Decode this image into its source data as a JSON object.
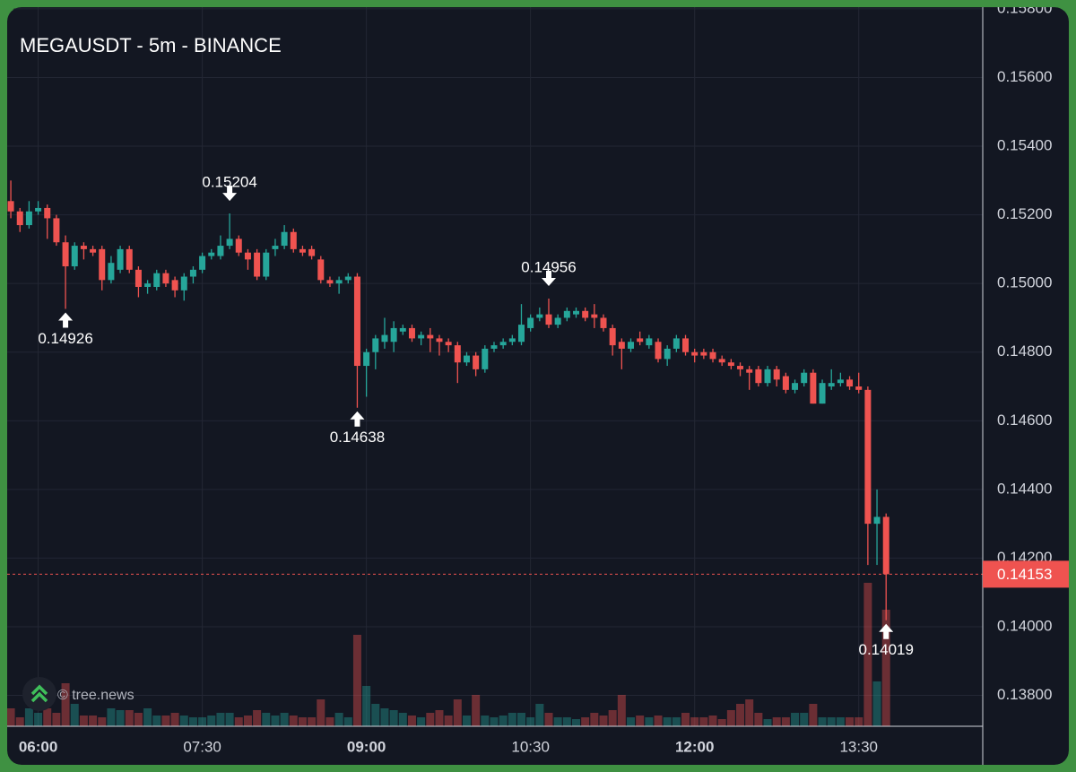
{
  "chart_data": {
    "type": "candlestick",
    "title": "MEGAUSDT - 5m - BINANCE",
    "watermark": "© tree.news",
    "up_color": "#26a69a",
    "down_color": "#ef5350",
    "grid": true,
    "x": [
      "05:45",
      "05:50",
      "05:55",
      "06:00",
      "06:05",
      "06:10",
      "06:15",
      "06:20",
      "06:25",
      "06:30",
      "06:35",
      "06:40",
      "06:45",
      "06:50",
      "06:55",
      "07:00",
      "07:05",
      "07:10",
      "07:15",
      "07:20",
      "07:25",
      "07:30",
      "07:35",
      "07:40",
      "07:45",
      "07:50",
      "07:55",
      "08:00",
      "08:05",
      "08:10",
      "08:15",
      "08:20",
      "08:25",
      "08:30",
      "08:35",
      "08:40",
      "08:45",
      "08:50",
      "08:55",
      "09:00",
      "09:05",
      "09:10",
      "09:15",
      "09:20",
      "09:25",
      "09:30",
      "09:35",
      "09:40",
      "09:45",
      "09:50",
      "09:55",
      "10:00",
      "10:05",
      "10:10",
      "10:15",
      "10:20",
      "10:25",
      "10:30",
      "10:35",
      "10:40",
      "10:45",
      "10:50",
      "10:55",
      "11:00",
      "11:05",
      "11:10",
      "11:15",
      "11:20",
      "11:25",
      "11:30",
      "11:35",
      "11:40",
      "11:45",
      "11:50",
      "11:55",
      "12:00",
      "12:05",
      "12:10",
      "12:15",
      "12:20",
      "12:25",
      "12:30",
      "12:35",
      "12:40",
      "12:45",
      "12:50",
      "12:55",
      "13:00",
      "13:05",
      "13:10",
      "13:15",
      "13:20",
      "13:25",
      "13:30",
      "13:35",
      "13:40",
      "13:45"
    ],
    "open": [
      0.1524,
      0.1521,
      0.1517,
      0.1521,
      0.1522,
      0.1519,
      0.1512,
      0.1505,
      0.1511,
      0.151,
      0.151,
      0.1501,
      0.1504,
      0.151,
      0.1504,
      0.1499,
      0.1499,
      0.1503,
      0.1501,
      0.1498,
      0.1502,
      0.1504,
      0.1508,
      0.1508,
      0.1511,
      0.1513,
      0.1509,
      0.1509,
      0.1502,
      0.151,
      0.1511,
      0.1515,
      0.151,
      0.151,
      0.1507,
      0.1501,
      0.15,
      0.1501,
      0.1502,
      0.1476,
      0.148,
      0.1483,
      0.1483,
      0.1486,
      0.1487,
      0.1484,
      0.1485,
      0.1484,
      0.1483,
      0.1482,
      0.1477,
      0.1479,
      0.1475,
      0.1481,
      0.1482,
      0.1483,
      0.1483,
      0.1487,
      0.149,
      0.1491,
      0.1488,
      0.149,
      0.1491,
      0.1492,
      0.1491,
      0.149,
      0.1487,
      0.1483,
      0.1481,
      0.1484,
      0.1482,
      0.1483,
      0.1478,
      0.1481,
      0.1484,
      0.148,
      0.148,
      0.148,
      0.1478,
      0.1477,
      0.1476,
      0.1475,
      0.1475,
      0.1471,
      0.1475,
      0.1473,
      0.1469,
      0.1471,
      0.1474,
      0.1465,
      0.147,
      0.1471,
      0.1472,
      0.147,
      0.1469,
      0.143,
      0.1432
    ],
    "high": [
      0.153,
      0.1522,
      0.1524,
      0.1524,
      0.1523,
      0.152,
      0.1514,
      0.1512,
      0.1512,
      0.1511,
      0.1511,
      0.1508,
      0.1511,
      0.1511,
      0.1505,
      0.1501,
      0.1504,
      0.1504,
      0.1502,
      0.1503,
      0.1505,
      0.1509,
      0.151,
      0.1514,
      0.15204,
      0.1514,
      0.151,
      0.151,
      0.151,
      0.1513,
      0.1517,
      0.1516,
      0.1511,
      0.1511,
      0.1508,
      0.1502,
      0.1502,
      0.1503,
      0.1503,
      0.1481,
      0.1485,
      0.149,
      0.1489,
      0.1488,
      0.1488,
      0.1486,
      0.1487,
      0.1485,
      0.1484,
      0.1483,
      0.148,
      0.148,
      0.1482,
      0.1483,
      0.1484,
      0.1485,
      0.1494,
      0.1491,
      0.1493,
      0.14956,
      0.1491,
      0.1493,
      0.1493,
      0.1493,
      0.1494,
      0.1491,
      0.1488,
      0.1484,
      0.1484,
      0.1486,
      0.1485,
      0.1484,
      0.1482,
      0.1485,
      0.1485,
      0.1481,
      0.1481,
      0.1481,
      0.1479,
      0.1478,
      0.1477,
      0.1476,
      0.1476,
      0.1476,
      0.1476,
      0.1474,
      0.1472,
      0.1475,
      0.1475,
      0.1472,
      0.1475,
      0.1474,
      0.1473,
      0.1474,
      0.147,
      0.144,
      0.1433
    ],
    "low": [
      0.1519,
      0.1515,
      0.1516,
      0.152,
      0.1513,
      0.1511,
      0.14926,
      0.1504,
      0.1507,
      0.1508,
      0.1498,
      0.15,
      0.1503,
      0.1503,
      0.1496,
      0.1497,
      0.1498,
      0.1499,
      0.1496,
      0.1495,
      0.15,
      0.1503,
      0.1507,
      0.1507,
      0.151,
      0.1508,
      0.1504,
      0.1501,
      0.1501,
      0.1508,
      0.151,
      0.1509,
      0.1508,
      0.1507,
      0.15,
      0.1499,
      0.1497,
      0.15,
      0.14638,
      0.1467,
      0.1475,
      0.1481,
      0.148,
      0.1485,
      0.1483,
      0.1482,
      0.148,
      0.1479,
      0.148,
      0.1471,
      0.1476,
      0.1473,
      0.1474,
      0.148,
      0.1481,
      0.1482,
      0.1482,
      0.1486,
      0.1489,
      0.1487,
      0.1487,
      0.1489,
      0.149,
      0.1489,
      0.1487,
      0.1486,
      0.1479,
      0.1475,
      0.148,
      0.1482,
      0.1481,
      0.1477,
      0.1476,
      0.148,
      0.1479,
      0.1477,
      0.1478,
      0.1477,
      0.1476,
      0.1475,
      0.1473,
      0.1469,
      0.147,
      0.147,
      0.147,
      0.1468,
      0.1468,
      0.147,
      0.1465,
      0.1465,
      0.1469,
      0.147,
      0.1469,
      0.1468,
      0.1418,
      0.1418,
      0.14019
    ],
    "close": [
      0.1521,
      0.1517,
      0.1521,
      0.1522,
      0.1519,
      0.1512,
      0.1505,
      0.1511,
      0.151,
      0.1509,
      0.1501,
      0.1506,
      0.151,
      0.1504,
      0.1499,
      0.15,
      0.1503,
      0.15,
      0.1498,
      0.1502,
      0.1504,
      0.1508,
      0.1509,
      0.1511,
      0.1513,
      0.1509,
      0.1507,
      0.1502,
      0.1509,
      0.1511,
      0.1515,
      0.151,
      0.1509,
      0.1508,
      0.1501,
      0.15,
      0.1501,
      0.1502,
      0.1476,
      0.148,
      0.1484,
      0.1485,
      0.1487,
      0.1487,
      0.1484,
      0.1485,
      0.1484,
      0.1483,
      0.1482,
      0.1477,
      0.1479,
      0.1475,
      0.1481,
      0.1482,
      0.1483,
      0.1484,
      0.1488,
      0.149,
      0.1491,
      0.1488,
      0.149,
      0.1492,
      0.1492,
      0.149,
      0.149,
      0.1487,
      0.1482,
      0.1481,
      0.1483,
      0.1483,
      0.1484,
      0.1478,
      0.1481,
      0.1484,
      0.148,
      0.1479,
      0.1479,
      0.1478,
      0.1477,
      0.1476,
      0.1475,
      0.1474,
      0.1471,
      0.1475,
      0.1472,
      0.1469,
      0.1471,
      0.1474,
      0.1465,
      0.1471,
      0.1471,
      0.1472,
      0.147,
      0.1469,
      0.143,
      0.1432,
      0.14153
    ],
    "volume": [
      20,
      10,
      20,
      15,
      20,
      15,
      48,
      25,
      12,
      12,
      10,
      20,
      18,
      18,
      15,
      20,
      12,
      12,
      15,
      12,
      10,
      10,
      12,
      15,
      15,
      10,
      12,
      18,
      15,
      12,
      15,
      12,
      10,
      10,
      30,
      10,
      15,
      10,
      102,
      45,
      25,
      20,
      18,
      15,
      12,
      10,
      15,
      18,
      12,
      30,
      12,
      35,
      12,
      10,
      12,
      15,
      15,
      10,
      25,
      15,
      10,
      10,
      8,
      10,
      15,
      12,
      18,
      35,
      10,
      12,
      10,
      12,
      10,
      10,
      15,
      10,
      10,
      12,
      8,
      18,
      25,
      30,
      15,
      8,
      10,
      10,
      15,
      15,
      25,
      10,
      10,
      10,
      10,
      10,
      160,
      50,
      130
    ],
    "xlim": [
      "05:43",
      "14:38"
    ],
    "xticks": [
      "06:00",
      "07:30",
      "09:00",
      "10:30",
      "12:00",
      "13:30"
    ],
    "ylim": [
      0.1371,
      0.15805
    ],
    "yticks": [
      {
        "value": 0.138,
        "label": "0.13800"
      },
      {
        "value": 0.14,
        "label": "0.14000"
      },
      {
        "value": 0.142,
        "label": "0.14200"
      },
      {
        "value": 0.144,
        "label": "0.14400"
      },
      {
        "value": 0.146,
        "label": "0.14600"
      },
      {
        "value": 0.148,
        "label": "0.14800"
      },
      {
        "value": 0.15,
        "label": "0.15000"
      },
      {
        "value": 0.152,
        "label": "0.15200"
      },
      {
        "value": 0.154,
        "label": "0.15400"
      },
      {
        "value": 0.156,
        "label": "0.15600"
      },
      {
        "value": 0.158,
        "label": "0.15800"
      }
    ],
    "annotations": [
      {
        "x": "06:15",
        "value": 0.14926,
        "side": "below"
      },
      {
        "x": "07:45",
        "value": 0.15204,
        "side": "above"
      },
      {
        "x": "08:55",
        "value": 0.14638,
        "side": "below"
      },
      {
        "x": "10:40",
        "value": 0.14956,
        "side": "above"
      },
      {
        "x": "13:45",
        "value": 0.14019,
        "side": "below"
      }
    ]
  }
}
